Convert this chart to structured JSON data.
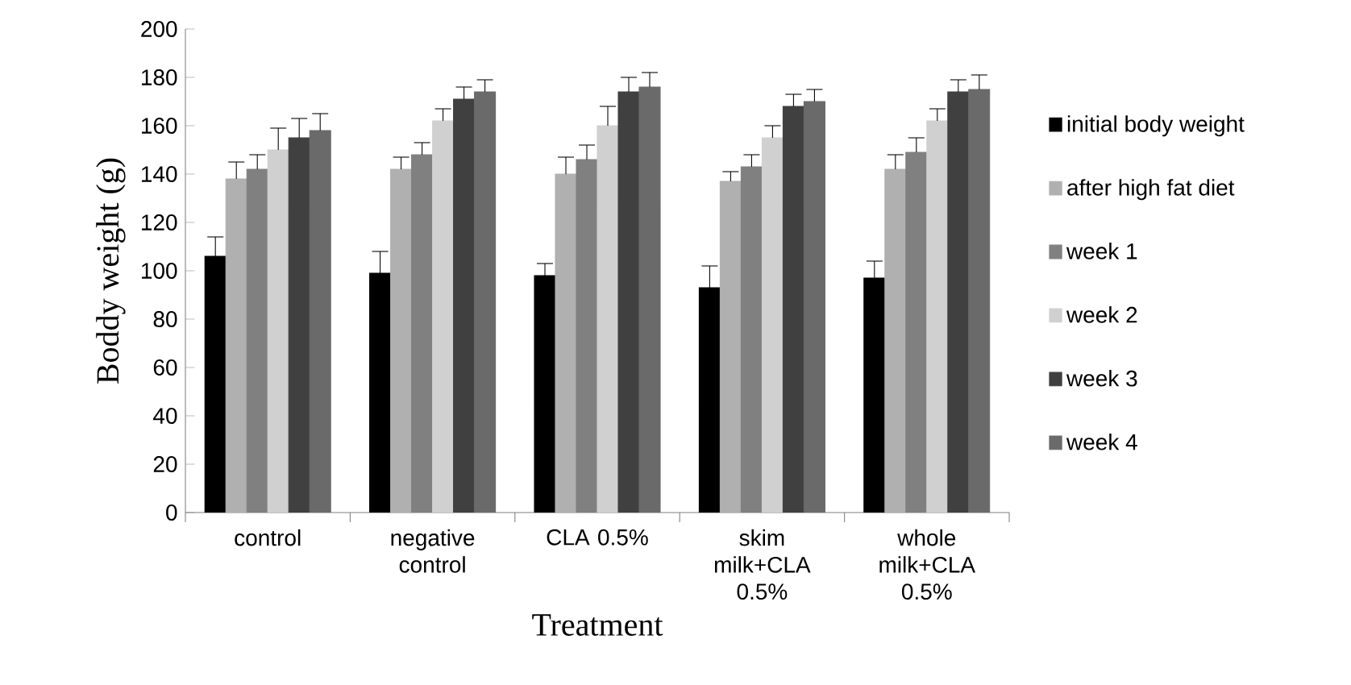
{
  "chart_data": {
    "type": "bar",
    "xlabel": "Treatment",
    "ylabel": "Boddy weight (g)",
    "categories": [
      "control",
      "negative control",
      "CLA 0.5%",
      "skim milk+CLA 0.5%",
      "whole milk+CLA 0.5%"
    ],
    "ylim": [
      0,
      200
    ],
    "yticks": [
      0,
      20,
      40,
      60,
      80,
      100,
      120,
      140,
      160,
      180,
      200
    ],
    "grid": false,
    "legend": "right",
    "series": [
      {
        "name": "initial body weight",
        "color": "#000000",
        "values": [
          106,
          99,
          98,
          93,
          97
        ],
        "errors": [
          8,
          9,
          5,
          9,
          7
        ]
      },
      {
        "name": "after high fat diet",
        "color": "#b0b0b0",
        "values": [
          138,
          142,
          140,
          137,
          142
        ],
        "errors": [
          7,
          5,
          7,
          4,
          6
        ]
      },
      {
        "name": "week 1",
        "color": "#808080",
        "values": [
          142,
          148,
          146,
          143,
          149
        ],
        "errors": [
          6,
          5,
          6,
          5,
          6
        ]
      },
      {
        "name": "week 2",
        "color": "#d0d0d0",
        "values": [
          150,
          162,
          160,
          155,
          162
        ],
        "errors": [
          9,
          5,
          8,
          5,
          5
        ]
      },
      {
        "name": "week 3",
        "color": "#404040",
        "values": [
          155,
          171,
          174,
          168,
          174
        ],
        "errors": [
          8,
          5,
          6,
          5,
          5
        ]
      },
      {
        "name": "week 4",
        "color": "#6a6a6a",
        "values": [
          158,
          174,
          176,
          170,
          175
        ],
        "errors": [
          7,
          5,
          6,
          5,
          6
        ]
      }
    ]
  }
}
